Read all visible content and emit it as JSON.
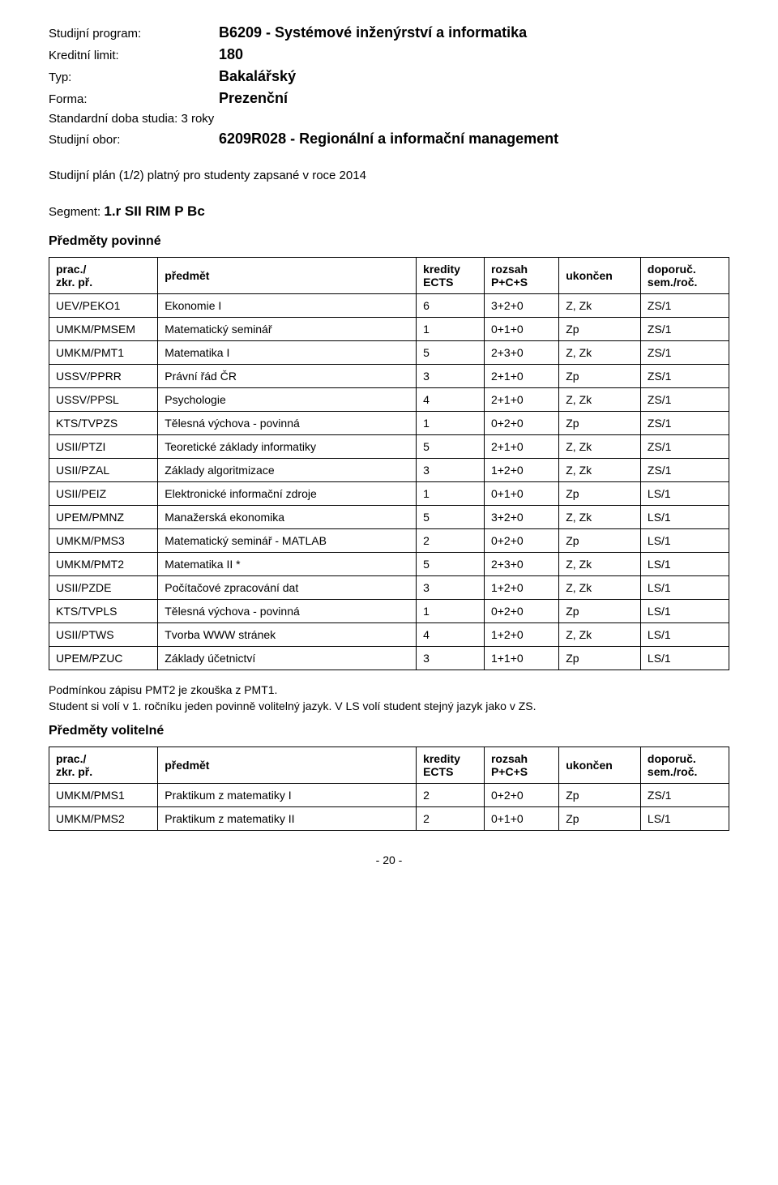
{
  "meta": {
    "program_label": "Studijní program:",
    "program_value": "B6209 - Systémové inženýrství a informatika",
    "credit_label": "Kreditní limit:",
    "credit_value": "180",
    "type_label": "Typ:",
    "type_value": "Bakalářský",
    "form_label": "Forma:",
    "form_value": "Prezenční",
    "duration_label": "Standardní doba studia: 3 roky",
    "field_label": "Studijní obor:",
    "field_value": "6209R028 - Regionální a informační management"
  },
  "plan_line": "Studijní plán (1/2) platný pro studenty zapsané v roce 2014",
  "segment": {
    "label": "Segment:",
    "code": "1.r SII RIM P Bc"
  },
  "section_mandatory_title": "Předměty povinné",
  "section_optional_title": "Předměty volitelné",
  "headers": {
    "code": "prac./\nzkr. př.",
    "subject": "předmět",
    "credits": "kredity\nECTS",
    "scope": "rozsah\nP+C+S",
    "end": "ukončen",
    "rec": "doporuč.\nsem./roč."
  },
  "mandatory_rows": [
    [
      "UEV/PEKO1",
      "Ekonomie I",
      "6",
      "3+2+0",
      "Z, Zk",
      "ZS/1"
    ],
    [
      "UMKM/PMSEM",
      "Matematický seminář",
      "1",
      "0+1+0",
      "Zp",
      "ZS/1"
    ],
    [
      "UMKM/PMT1",
      "Matematika I",
      "5",
      "2+3+0",
      "Z, Zk",
      "ZS/1"
    ],
    [
      "USSV/PPRR",
      "Právní řád ČR",
      "3",
      "2+1+0",
      "Zp",
      "ZS/1"
    ],
    [
      "USSV/PPSL",
      "Psychologie",
      "4",
      "2+1+0",
      "Z, Zk",
      "ZS/1"
    ],
    [
      "KTS/TVPZS",
      "Tělesná výchova - povinná",
      "1",
      "0+2+0",
      "Zp",
      "ZS/1"
    ],
    [
      "USII/PTZI",
      "Teoretické základy informatiky",
      "5",
      "2+1+0",
      "Z, Zk",
      "ZS/1"
    ],
    [
      "USII/PZAL",
      "Základy algoritmizace",
      "3",
      "1+2+0",
      "Z, Zk",
      "ZS/1"
    ],
    [
      "USII/PEIZ",
      "Elektronické informační zdroje",
      "1",
      "0+1+0",
      "Zp",
      "LS/1"
    ],
    [
      "UPEM/PMNZ",
      "Manažerská ekonomika",
      "5",
      "3+2+0",
      "Z, Zk",
      "LS/1"
    ],
    [
      "UMKM/PMS3",
      "Matematický seminář - MATLAB",
      "2",
      "0+2+0",
      "Zp",
      "LS/1"
    ],
    [
      "UMKM/PMT2",
      "Matematika II *",
      "5",
      "2+3+0",
      "Z, Zk",
      "LS/1"
    ],
    [
      "USII/PZDE",
      "Počítačové zpracování dat",
      "3",
      "1+2+0",
      "Z, Zk",
      "LS/1"
    ],
    [
      "KTS/TVPLS",
      "Tělesná výchova - povinná",
      "1",
      "0+2+0",
      "Zp",
      "LS/1"
    ],
    [
      "USII/PTWS",
      "Tvorba WWW stránek",
      "4",
      "1+2+0",
      "Z, Zk",
      "LS/1"
    ],
    [
      "UPEM/PZUC",
      "Základy účetnictví",
      "3",
      "1+1+0",
      "Zp",
      "LS/1"
    ]
  ],
  "optional_rows": [
    [
      "UMKM/PMS1",
      "Praktikum z matematiky I",
      "2",
      "0+2+0",
      "Zp",
      "ZS/1"
    ],
    [
      "UMKM/PMS2",
      "Praktikum z matematiky II",
      "2",
      "0+1+0",
      "Zp",
      "LS/1"
    ]
  ],
  "notes": {
    "l1": "Podmínkou zápisu PMT2 je zkouška z PMT1.",
    "l2": "Student si volí v 1. ročníku jeden povinně volitelný jazyk. V LS volí student stejný jazyk jako v ZS."
  },
  "pagenum": "- 20 -",
  "style": {
    "border_color": "#000000",
    "font_family": "Arial",
    "col_widths_pct": [
      16,
      38,
      10,
      11,
      12,
      13
    ]
  }
}
